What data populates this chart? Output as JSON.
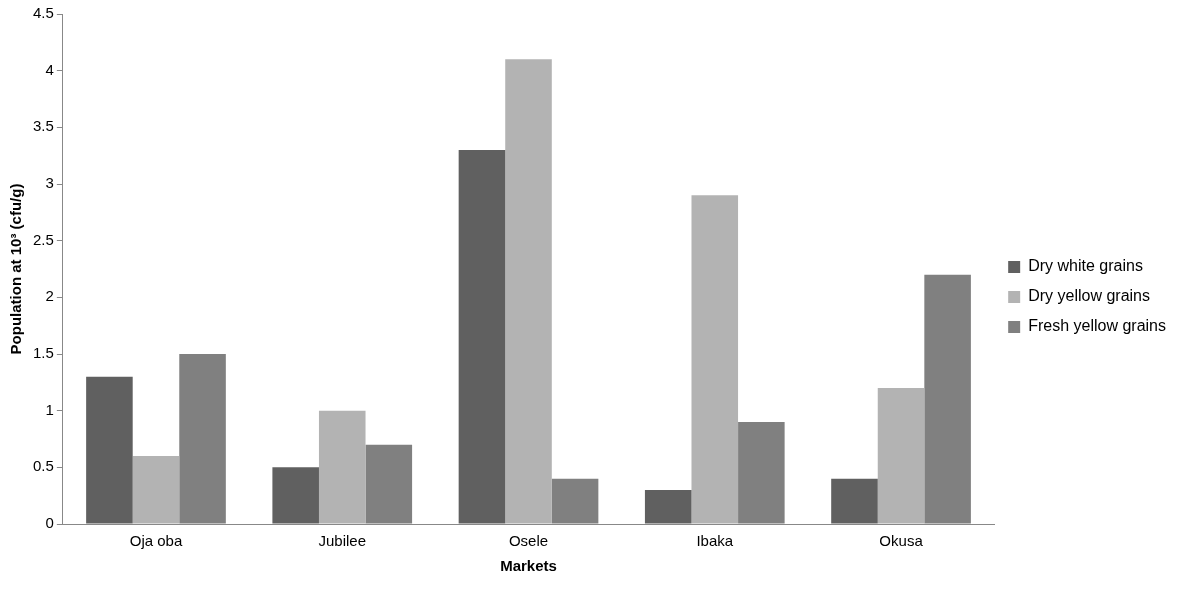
{
  "chart_data": {
    "type": "bar",
    "xlabel": "Markets",
    "ylabel": "Population at 10³ (cfu/g)",
    "categories": [
      "Oja oba",
      "Jubilee",
      "Osele",
      "Ibaka",
      "Okusa"
    ],
    "series": [
      {
        "name": "Dry white grains",
        "color": "#606060",
        "values": [
          1.3,
          0.5,
          3.3,
          0.3,
          0.4
        ]
      },
      {
        "name": "Dry yellow grains",
        "color": "#b3b3b3",
        "values": [
          0.6,
          1.0,
          4.1,
          2.9,
          1.2
        ]
      },
      {
        "name": "Fresh yellow grains",
        "color": "#808080",
        "values": [
          1.5,
          0.7,
          0.4,
          0.9,
          2.2
        ]
      }
    ],
    "ylim": [
      0,
      4.5
    ],
    "yticks": [
      0,
      0.5,
      1,
      1.5,
      2,
      2.5,
      3,
      3.5,
      4,
      4.5
    ],
    "grid": false,
    "legend": "right"
  }
}
